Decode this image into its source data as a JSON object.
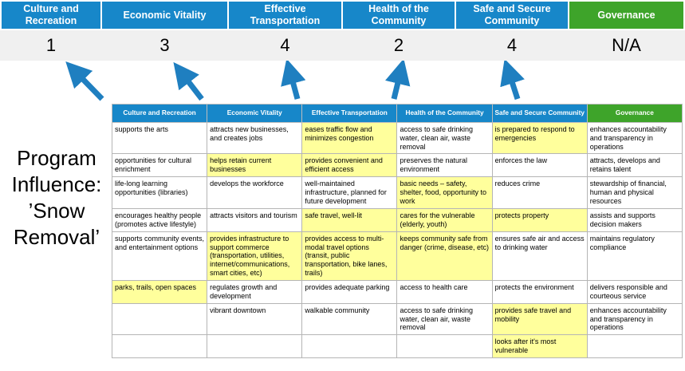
{
  "title": "Program Influence: ’Snow Removal’",
  "colors": {
    "header_blue": "#1787C9",
    "header_green": "#3EA42A",
    "highlight": "#FFFF9C",
    "arrow_blue": "#1F7FC0",
    "score_band_gray": "#F0F0F0"
  },
  "top_band": {
    "columns": [
      {
        "label": "Culture and Recreation",
        "score": "1",
        "color": "#1787C9"
      },
      {
        "label": "Economic Vitality",
        "score": "3",
        "color": "#1787C9"
      },
      {
        "label": "Effective Transportation",
        "score": "4",
        "color": "#1787C9"
      },
      {
        "label": "Health of the Community",
        "score": "2",
        "color": "#1787C9"
      },
      {
        "label": "Safe and Secure Community",
        "score": "4",
        "color": "#1787C9"
      },
      {
        "label": "Governance",
        "score": "N/A",
        "color": "#3EA42A"
      }
    ]
  },
  "table": {
    "headers": [
      {
        "label": "Culture and Recreation",
        "color": "#1787C9"
      },
      {
        "label": "Economic Vitality",
        "color": "#1787C9"
      },
      {
        "label": "Effective Transportation",
        "color": "#1787C9"
      },
      {
        "label": "Health of the Community",
        "color": "#1787C9"
      },
      {
        "label": "Safe and Secure Community",
        "color": "#1787C9"
      },
      {
        "label": "Governance",
        "color": "#3EA42A"
      }
    ],
    "rows": [
      {
        "cells": [
          {
            "text": "supports the arts",
            "hl": false
          },
          {
            "text": "attracts new businesses, and creates jobs",
            "hl": false
          },
          {
            "text": "eases traffic flow and minimizes congestion",
            "hl": true
          },
          {
            "text": "access to safe drinking water, clean air, waste removal",
            "hl": false
          },
          {
            "text": "is prepared to respond to emergencies",
            "hl": true
          },
          {
            "text": "enhances accountability and transparency in operations",
            "hl": false
          }
        ]
      },
      {
        "cells": [
          {
            "text": "opportunities for cultural enrichment",
            "hl": false
          },
          {
            "text": "helps retain current businesses",
            "hl": true
          },
          {
            "text": "provides convenient and efficient access",
            "hl": true
          },
          {
            "text": "preserves the natural environment",
            "hl": false
          },
          {
            "text": "enforces the law",
            "hl": false
          },
          {
            "text": "attracts, develops and retains talent",
            "hl": false
          }
        ]
      },
      {
        "cells": [
          {
            "text": "life-long learning opportunities (libraries)",
            "hl": false
          },
          {
            "text": "develops the workforce",
            "hl": false
          },
          {
            "text": "well-maintained infrastructure, planned for future development",
            "hl": false
          },
          {
            "text": "basic needs – safety, shelter, food, opportunity to work",
            "hl": true
          },
          {
            "text": "reduces crime",
            "hl": false
          },
          {
            "text": "stewardship of financial, human and physical resources",
            "hl": false
          }
        ]
      },
      {
        "cells": [
          {
            "text": "encourages healthy people (promotes active lifestyle)",
            "hl": false
          },
          {
            "text": "attracts visitors and tourism",
            "hl": false
          },
          {
            "text": "safe travel, well-lit",
            "hl": true
          },
          {
            "text": "cares for the vulnerable (elderly, youth)",
            "hl": true
          },
          {
            "text": "protects property",
            "hl": true
          },
          {
            "text": "assists and supports decision makers",
            "hl": false
          }
        ]
      },
      {
        "cells": [
          {
            "text": "supports community events, and entertainment options",
            "hl": false
          },
          {
            "text": "provides infrastructure to support commerce (transportation, utilities, internet/communications, smart cities, etc)",
            "hl": true
          },
          {
            "text": "provides access to multi-modal travel options (transit, public transportation, bike lanes, trails)",
            "hl": true
          },
          {
            "text": "keeps community safe from danger (crime, disease, etc)",
            "hl": true
          },
          {
            "text": "ensures safe air and access to drinking water",
            "hl": false
          },
          {
            "text": "maintains regulatory compliance",
            "hl": false
          }
        ]
      },
      {
        "cells": [
          {
            "text": "parks, trails, open spaces",
            "hl": true
          },
          {
            "text": "regulates growth and development",
            "hl": false
          },
          {
            "text": "provides adequate parking",
            "hl": false
          },
          {
            "text": "access to health care",
            "hl": false
          },
          {
            "text": "protects the environment",
            "hl": false
          },
          {
            "text": "delivers responsible and courteous service",
            "hl": false
          }
        ]
      },
      {
        "cells": [
          {
            "text": "",
            "hl": false
          },
          {
            "text": "vibrant downtown",
            "hl": false
          },
          {
            "text": "walkable community",
            "hl": false
          },
          {
            "text": "access to safe drinking water, clean air, waste removal",
            "hl": false
          },
          {
            "text": "provides safe travel and mobility",
            "hl": true
          },
          {
            "text": "enhances accountability and transparency in operations",
            "hl": false
          }
        ]
      },
      {
        "cells": [
          {
            "text": "",
            "hl": false
          },
          {
            "text": "",
            "hl": false
          },
          {
            "text": "",
            "hl": false
          },
          {
            "text": "",
            "hl": false
          },
          {
            "text": "looks after it's most vulnerable",
            "hl": true
          },
          {
            "text": "",
            "hl": false
          }
        ]
      }
    ]
  }
}
